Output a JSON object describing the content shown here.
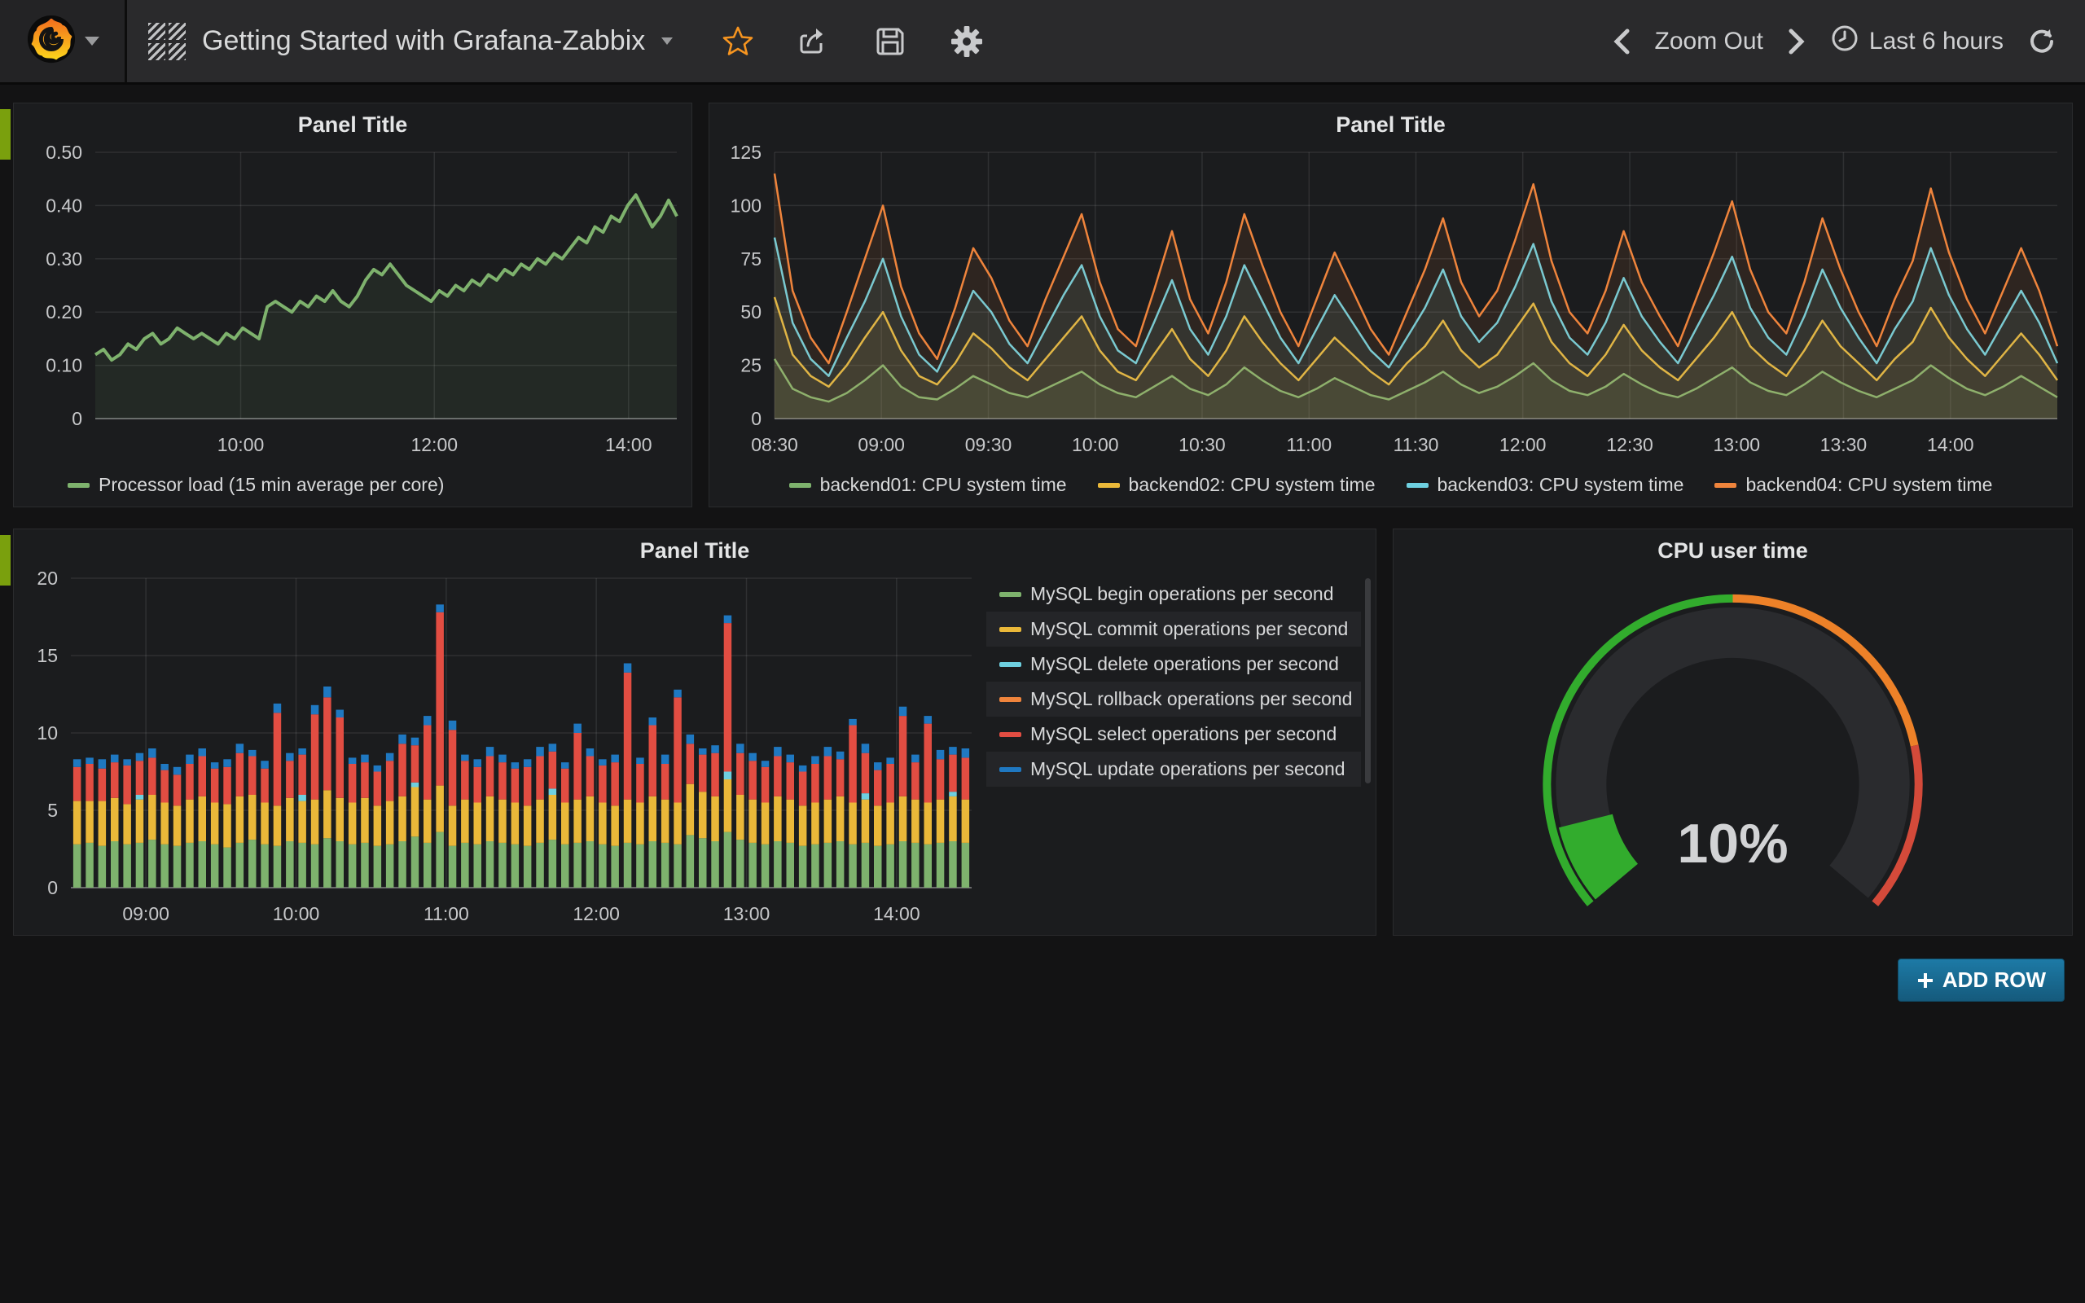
{
  "palette": {
    "navbar_bg": "#2a2a2c",
    "panel_bg": "#1b1c1e",
    "page_bg": "#131314",
    "row_tab": "#7AA00D",
    "star_orange": "#F79520",
    "addrow_blue": "#1d7aa6",
    "green": "#7EB26D",
    "yellow": "#EAB839",
    "cyan": "#6ED0E0",
    "orange": "#EF843C",
    "red": "#E24D42",
    "blue": "#1F78C1",
    "gauge_green": "#32AC2D",
    "gauge_orange": "#ED8128",
    "gauge_red": "#D44A3A"
  },
  "navbar": {
    "dashboard_title": "Getting Started with Grafana-Zabbix",
    "zoom_out": "Zoom Out",
    "time_range": "Last 6 hours"
  },
  "add_row_label": "ADD ROW",
  "panels": {
    "p1": {
      "title": "Panel Title"
    },
    "p2": {
      "title": "Panel Title"
    },
    "p3": {
      "title": "Panel Title"
    },
    "p4": {
      "title": "CPU user time",
      "value_display": "10%"
    }
  },
  "chart_data": [
    {
      "type": "line",
      "title": "Panel Title",
      "x_range": [
        "08:30",
        "14:30"
      ],
      "ylim": [
        0,
        0.5
      ],
      "yticks": [
        {
          "v": 0,
          "label": "0"
        },
        {
          "v": 0.1,
          "label": "0.10"
        },
        {
          "v": 0.2,
          "label": "0.20"
        },
        {
          "v": 0.3,
          "label": "0.30"
        },
        {
          "v": 0.4,
          "label": "0.40"
        },
        {
          "v": 0.5,
          "label": "0.50"
        }
      ],
      "xticks": [
        {
          "f": 0.25,
          "label": "10:00"
        },
        {
          "f": 0.583,
          "label": "12:00"
        },
        {
          "f": 0.917,
          "label": "14:00"
        }
      ],
      "series": [
        {
          "name": "Processor load (15 min average per core)",
          "color": "#7EB26D",
          "values": [
            0.12,
            0.13,
            0.11,
            0.12,
            0.14,
            0.13,
            0.15,
            0.16,
            0.14,
            0.15,
            0.17,
            0.16,
            0.15,
            0.16,
            0.15,
            0.14,
            0.16,
            0.15,
            0.17,
            0.16,
            0.15,
            0.21,
            0.22,
            0.21,
            0.2,
            0.22,
            0.21,
            0.23,
            0.22,
            0.24,
            0.22,
            0.21,
            0.23,
            0.26,
            0.28,
            0.27,
            0.29,
            0.27,
            0.25,
            0.24,
            0.23,
            0.22,
            0.24,
            0.23,
            0.25,
            0.24,
            0.26,
            0.25,
            0.27,
            0.26,
            0.28,
            0.27,
            0.29,
            0.28,
            0.3,
            0.29,
            0.31,
            0.3,
            0.32,
            0.34,
            0.33,
            0.36,
            0.35,
            0.38,
            0.37,
            0.4,
            0.42,
            0.39,
            0.36,
            0.38,
            0.41,
            0.38
          ]
        }
      ]
    },
    {
      "type": "line",
      "title": "Panel Title",
      "x_range": [
        "08:30",
        "14:30"
      ],
      "ylim": [
        0,
        125
      ],
      "yticks": [
        {
          "v": 0,
          "label": "0"
        },
        {
          "v": 25,
          "label": "25"
        },
        {
          "v": 50,
          "label": "50"
        },
        {
          "v": 75,
          "label": "75"
        },
        {
          "v": 100,
          "label": "100"
        },
        {
          "v": 125,
          "label": "125"
        }
      ],
      "xticks": [
        {
          "f": 0.0,
          "label": "08:30"
        },
        {
          "f": 0.0833,
          "label": "09:00"
        },
        {
          "f": 0.1667,
          "label": "09:30"
        },
        {
          "f": 0.25,
          "label": "10:00"
        },
        {
          "f": 0.3333,
          "label": "10:30"
        },
        {
          "f": 0.4167,
          "label": "11:00"
        },
        {
          "f": 0.5,
          "label": "11:30"
        },
        {
          "f": 0.5833,
          "label": "12:00"
        },
        {
          "f": 0.6667,
          "label": "12:30"
        },
        {
          "f": 0.75,
          "label": "13:00"
        },
        {
          "f": 0.8333,
          "label": "13:30"
        },
        {
          "f": 0.9167,
          "label": "14:00"
        }
      ],
      "series": [
        {
          "name": "backend01: CPU system time",
          "color": "#7EB26D",
          "values": [
            28,
            14,
            10,
            8,
            12,
            18,
            25,
            15,
            10,
            9,
            14,
            20,
            16,
            12,
            10,
            14,
            18,
            22,
            16,
            12,
            10,
            15,
            20,
            14,
            11,
            16,
            24,
            18,
            13,
            10,
            14,
            19,
            15,
            11,
            9,
            13,
            17,
            22,
            16,
            12,
            15,
            20,
            26,
            18,
            13,
            11,
            15,
            21,
            16,
            12,
            10,
            14,
            19,
            24,
            17,
            13,
            11,
            16,
            22,
            17,
            13,
            10,
            14,
            18,
            25,
            19,
            14,
            11,
            15,
            20,
            15,
            10
          ]
        },
        {
          "name": "backend02: CPU system time",
          "color": "#EAB839",
          "values": [
            57,
            30,
            20,
            15,
            25,
            38,
            50,
            32,
            20,
            16,
            26,
            40,
            33,
            24,
            18,
            28,
            38,
            48,
            32,
            22,
            18,
            30,
            42,
            28,
            20,
            32,
            48,
            36,
            26,
            18,
            28,
            38,
            30,
            22,
            16,
            26,
            34,
            46,
            32,
            24,
            30,
            42,
            54,
            36,
            26,
            20,
            30,
            44,
            32,
            24,
            18,
            28,
            38,
            50,
            34,
            26,
            20,
            32,
            46,
            34,
            26,
            18,
            28,
            36,
            52,
            38,
            28,
            20,
            30,
            40,
            30,
            18
          ]
        },
        {
          "name": "backend03: CPU system time",
          "color": "#6ED0E0",
          "values": [
            85,
            45,
            28,
            20,
            38,
            55,
            75,
            48,
            30,
            22,
            40,
            60,
            50,
            35,
            26,
            42,
            58,
            72,
            48,
            32,
            26,
            45,
            65,
            42,
            30,
            48,
            72,
            55,
            38,
            26,
            42,
            58,
            45,
            32,
            24,
            38,
            52,
            70,
            48,
            36,
            45,
            62,
            82,
            55,
            38,
            30,
            45,
            66,
            48,
            36,
            26,
            42,
            58,
            76,
            52,
            38,
            30,
            48,
            70,
            52,
            38,
            26,
            42,
            55,
            80,
            58,
            42,
            30,
            45,
            60,
            45,
            26
          ]
        },
        {
          "name": "backend04: CPU system time",
          "color": "#EF843C",
          "values": [
            115,
            60,
            38,
            26,
            50,
            75,
            100,
            62,
            40,
            28,
            52,
            80,
            66,
            46,
            34,
            56,
            76,
            96,
            64,
            42,
            34,
            60,
            88,
            56,
            40,
            64,
            96,
            72,
            50,
            34,
            56,
            78,
            60,
            42,
            30,
            50,
            70,
            94,
            64,
            48,
            60,
            84,
            110,
            74,
            50,
            40,
            60,
            88,
            64,
            48,
            34,
            56,
            78,
            102,
            70,
            50,
            40,
            64,
            94,
            70,
            50,
            34,
            56,
            74,
            108,
            78,
            56,
            40,
            60,
            80,
            60,
            34
          ]
        }
      ]
    },
    {
      "type": "bar",
      "title": "Panel Title",
      "stacked": true,
      "x_range": [
        "08:30",
        "14:30"
      ],
      "ylim": [
        0,
        20
      ],
      "yticks": [
        {
          "v": 0,
          "label": "0"
        },
        {
          "v": 5,
          "label": "5"
        },
        {
          "v": 10,
          "label": "10"
        },
        {
          "v": 15,
          "label": "15"
        },
        {
          "v": 20,
          "label": "20"
        }
      ],
      "xticks": [
        {
          "f": 0.0833,
          "label": "09:00"
        },
        {
          "f": 0.25,
          "label": "10:00"
        },
        {
          "f": 0.4167,
          "label": "11:00"
        },
        {
          "f": 0.5833,
          "label": "12:00"
        },
        {
          "f": 0.75,
          "label": "13:00"
        },
        {
          "f": 0.9167,
          "label": "14:00"
        }
      ],
      "series": [
        {
          "name": "MySQL begin operations per second",
          "color": "#7EB26D",
          "values": [
            2.8,
            2.9,
            2.7,
            3.0,
            2.8,
            2.9,
            3.1,
            2.8,
            2.7,
            2.9,
            3.0,
            2.8,
            2.6,
            2.9,
            3.1,
            2.8,
            2.7,
            3.0,
            2.9,
            2.8,
            3.2,
            3.0,
            2.8,
            2.9,
            2.7,
            2.8,
            3.0,
            3.3,
            2.9,
            3.6,
            2.7,
            2.9,
            2.8,
            3.0,
            2.9,
            2.8,
            2.7,
            2.9,
            3.1,
            2.8,
            2.9,
            3.0,
            2.8,
            2.7,
            2.9,
            2.8,
            3.0,
            2.9,
            2.8,
            3.4,
            3.2,
            3.0,
            3.6,
            3.1,
            2.9,
            2.8,
            3.0,
            2.9,
            2.7,
            2.8,
            2.9,
            3.0,
            2.8,
            2.9,
            2.7,
            2.8,
            3.0,
            2.9,
            2.8,
            2.9,
            3.0,
            2.9
          ]
        },
        {
          "name": "MySQL commit operations per second",
          "color": "#EAB839",
          "values": [
            2.8,
            2.7,
            2.9,
            2.8,
            2.6,
            2.8,
            2.9,
            2.7,
            2.6,
            2.8,
            2.9,
            2.7,
            2.8,
            3.0,
            2.9,
            2.7,
            2.6,
            2.8,
            2.7,
            2.9,
            3.1,
            2.8,
            2.7,
            2.9,
            2.6,
            2.8,
            2.9,
            3.2,
            2.8,
            3.0,
            2.6,
            2.8,
            2.7,
            2.9,
            2.8,
            2.7,
            2.6,
            2.8,
            2.9,
            2.7,
            2.8,
            2.9,
            2.7,
            2.6,
            2.8,
            2.7,
            2.9,
            2.8,
            2.7,
            3.3,
            3.0,
            2.9,
            3.4,
            2.9,
            2.8,
            2.7,
            2.9,
            2.8,
            2.6,
            2.7,
            2.8,
            2.9,
            2.7,
            2.8,
            2.6,
            2.7,
            2.9,
            2.8,
            2.7,
            2.8,
            2.9,
            2.8
          ]
        },
        {
          "name": "MySQL delete operations per second",
          "color": "#6ED0E0",
          "values": [
            0,
            0,
            0,
            0,
            0,
            0.3,
            0,
            0,
            0,
            0,
            0,
            0,
            0,
            0,
            0,
            0,
            0,
            0,
            0.4,
            0,
            0,
            0,
            0,
            0,
            0,
            0,
            0,
            0.3,
            0,
            0,
            0,
            0,
            0,
            0,
            0,
            0,
            0,
            0,
            0.4,
            0,
            0,
            0,
            0,
            0,
            0,
            0,
            0,
            0,
            0,
            0,
            0,
            0,
            0.5,
            0,
            0,
            0,
            0,
            0,
            0,
            0,
            0,
            0,
            0,
            0.4,
            0,
            0,
            0,
            0,
            0,
            0,
            0.3,
            0
          ]
        },
        {
          "name": "MySQL rollback operations per second",
          "color": "#EF843C",
          "values": [
            0,
            0,
            0,
            0,
            0,
            0,
            0,
            0,
            0,
            0,
            0,
            0,
            0,
            0,
            0,
            0,
            0,
            0,
            0,
            0,
            0,
            0,
            0,
            0,
            0,
            0,
            0,
            0,
            0,
            0,
            0,
            0,
            0,
            0,
            0,
            0,
            0,
            0,
            0,
            0,
            0,
            0,
            0,
            0,
            0,
            0,
            0,
            0,
            0,
            0,
            0,
            0,
            0,
            0,
            0,
            0,
            0,
            0,
            0,
            0,
            0,
            0,
            0,
            0,
            0,
            0,
            0,
            0,
            0,
            0,
            0,
            0
          ]
        },
        {
          "name": "MySQL select operations per second",
          "color": "#E24D42",
          "values": [
            2.2,
            2.4,
            2.1,
            2.3,
            2.5,
            2.2,
            2.4,
            2.1,
            2.0,
            2.3,
            2.6,
            2.2,
            2.4,
            2.8,
            2.5,
            2.2,
            6.0,
            2.4,
            2.6,
            5.5,
            6.0,
            5.2,
            2.5,
            2.3,
            2.2,
            2.6,
            3.4,
            2.4,
            4.8,
            11.2,
            4.9,
            2.5,
            2.3,
            2.6,
            2.4,
            2.2,
            2.5,
            2.8,
            2.4,
            2.2,
            4.3,
            2.6,
            2.4,
            2.8,
            8.2,
            2.5,
            4.6,
            2.3,
            6.8,
            2.6,
            2.4,
            2.8,
            9.6,
            2.7,
            2.5,
            2.3,
            2.6,
            2.4,
            2.2,
            2.5,
            2.8,
            2.4,
            5.0,
            2.6,
            2.3,
            2.5,
            5.2,
            2.4,
            5.1,
            2.6,
            2.4,
            2.7
          ]
        },
        {
          "name": "MySQL update operations per second",
          "color": "#1F78C1",
          "values": [
            0.5,
            0.4,
            0.6,
            0.5,
            0.4,
            0.5,
            0.6,
            0.4,
            0.5,
            0.6,
            0.5,
            0.4,
            0.5,
            0.6,
            0.4,
            0.5,
            0.6,
            0.5,
            0.4,
            0.6,
            0.7,
            0.5,
            0.4,
            0.5,
            0.4,
            0.5,
            0.6,
            0.5,
            0.6,
            0.5,
            0.6,
            0.4,
            0.5,
            0.6,
            0.5,
            0.4,
            0.5,
            0.6,
            0.5,
            0.4,
            0.6,
            0.5,
            0.4,
            0.5,
            0.6,
            0.4,
            0.5,
            0.6,
            0.5,
            0.6,
            0.4,
            0.5,
            0.5,
            0.6,
            0.5,
            0.4,
            0.6,
            0.5,
            0.4,
            0.5,
            0.6,
            0.5,
            0.4,
            0.6,
            0.5,
            0.4,
            0.6,
            0.5,
            0.5,
            0.6,
            0.5,
            0.6
          ]
        }
      ]
    },
    {
      "type": "gauge",
      "title": "CPU user time",
      "value": 10,
      "unit": "%",
      "display": "10%",
      "min": 0,
      "max": 100,
      "thresholds": [
        {
          "to": 50,
          "color": "#32AC2D"
        },
        {
          "to": 80,
          "color": "#ED8128"
        },
        {
          "to": 100,
          "color": "#D44A3A"
        }
      ],
      "value_color": "#32AC2D"
    }
  ]
}
